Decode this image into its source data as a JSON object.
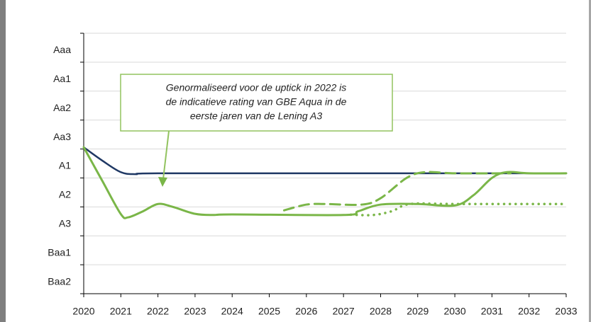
{
  "chart_data": {
    "type": "line",
    "annotation": [
      "Genormaliseerd voor de uptick in 2022 is",
      "de indicatieve rating van GBE Aqua in de",
      "eerste jaren van de Lening A3"
    ],
    "xlim": [
      2020,
      2033
    ],
    "xticks": [
      2020,
      2021,
      2022,
      2023,
      2024,
      2025,
      2026,
      2027,
      2028,
      2029,
      2030,
      2031,
      2032,
      2033
    ],
    "ylim": [
      0,
      9
    ],
    "yticks": [
      {
        "value": 8.5,
        "label": "Aaa"
      },
      {
        "value": 7.5,
        "label": "Aa1"
      },
      {
        "value": 6.5,
        "label": "Aa2"
      },
      {
        "value": 5.5,
        "label": "Aa3"
      },
      {
        "value": 4.5,
        "label": "A1"
      },
      {
        "value": 3.5,
        "label": "A2"
      },
      {
        "value": 2.5,
        "label": "A3"
      },
      {
        "value": 1.5,
        "label": "Baa1"
      },
      {
        "value": 0.5,
        "label": "Baa2"
      }
    ],
    "grid": true,
    "series": [
      {
        "color": "#1f3864",
        "line_style": "solid",
        "width": 2.5,
        "x": [
          2020,
          2020.5,
          2021,
          2021.4,
          2022,
          2027,
          2033
        ],
        "values": [
          5.06,
          4.6,
          4.2,
          4.13,
          4.16,
          4.16,
          4.16
        ]
      },
      {
        "color": "#7ab648",
        "line_style": "dashed",
        "width": 3,
        "x": [
          2025.4,
          2026,
          2026.5,
          2027.5,
          2028,
          2028.7,
          2029.2,
          2030,
          2031.5
        ],
        "values": [
          2.88,
          3.08,
          3.1,
          3.08,
          3.3,
          4.0,
          4.2,
          4.16,
          4.16
        ]
      },
      {
        "color": "#7ab648",
        "line_style": "dotted",
        "width": 3.5,
        "x": [
          2027.2,
          2027.8,
          2028.3,
          2028.8,
          2030,
          2033
        ],
        "values": [
          2.73,
          2.72,
          2.85,
          3.1,
          3.1,
          3.1
        ]
      },
      {
        "color": "#7ab648",
        "line_style": "solid",
        "width": 3,
        "x": [
          2020,
          2020.5,
          2021,
          2021.2,
          2021.6,
          2022,
          2022.4,
          2023,
          2023.5,
          2024,
          2027,
          2027.4,
          2028,
          2029,
          2030,
          2030.5,
          2031,
          2031.4,
          2032,
          2033
        ],
        "values": [
          5.06,
          3.9,
          2.75,
          2.64,
          2.85,
          3.1,
          3.0,
          2.76,
          2.72,
          2.74,
          2.72,
          2.85,
          3.08,
          3.1,
          3.05,
          3.4,
          4.0,
          4.2,
          4.16,
          4.16
        ]
      }
    ]
  }
}
